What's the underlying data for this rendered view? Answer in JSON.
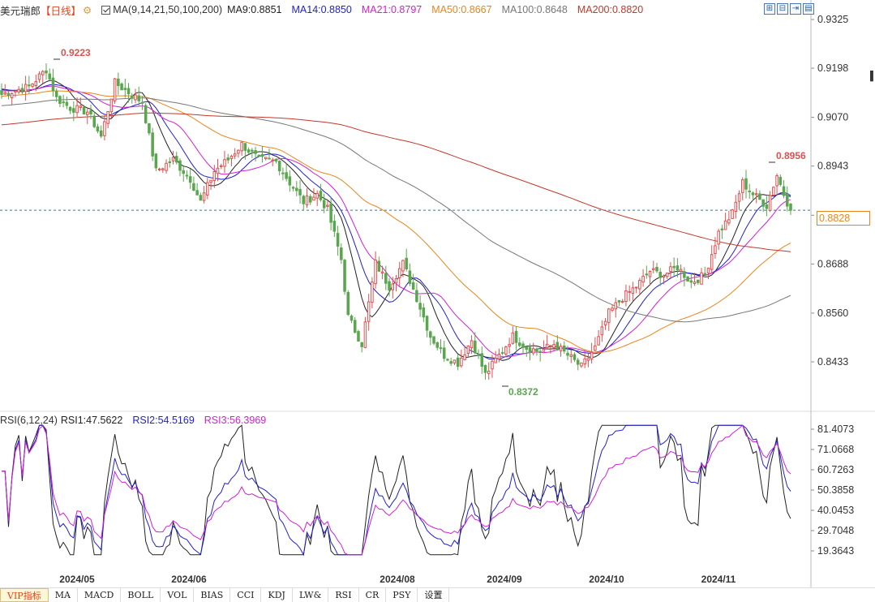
{
  "legend": {
    "symbol": "美元瑞郎",
    "period": "【日线】",
    "ma": "MA(9,14,21,50,100,200)",
    "ma_values": [
      {
        "label": "MA9:0.8851",
        "color": "#222222"
      },
      {
        "label": "MA14:0.8850",
        "color": "#1f1fd0"
      },
      {
        "label": "MA21:0.8797",
        "color": "#d21fd2"
      },
      {
        "label": "MA50:0.8667",
        "color": "#e8851b"
      },
      {
        "label": "MA100:0.8648",
        "color": "#777777"
      },
      {
        "label": "MA200:0.8820",
        "color": "#c0392b"
      }
    ]
  },
  "rsi_legend": {
    "label": "RSI(6,12,24)",
    "values": [
      {
        "label": "RSI1:47.5622",
        "color": "#222222"
      },
      {
        "label": "RSI2:54.5169",
        "color": "#1f1fd0"
      },
      {
        "label": "RSI3:56.3969",
        "color": "#d21fd2"
      }
    ]
  },
  "current_price": "0.8828",
  "annotations": {
    "high": "0.9223",
    "low": "0.8372",
    "recent_high": "0.8956"
  },
  "tabs": [
    "VIP指标",
    "MA",
    "MACD",
    "BOLL",
    "VOL",
    "BIAS",
    "CCI",
    "KDJ",
    "LW&",
    "RSI",
    "CR",
    "PSY",
    "设置"
  ],
  "colors": {
    "up": "#e05050",
    "down": "#5aa64e",
    "current_line": "#3a6fb0"
  },
  "chart_data": {
    "type": "candlestick",
    "price_axis": {
      "ticks": [
        "0.9325",
        "0.9198",
        "0.9070",
        "0.8943",
        "0.8815",
        "0.8688",
        "0.8560",
        "0.8433"
      ],
      "range": [
        0.8305,
        0.9325
      ]
    },
    "rsi_axis": {
      "ticks": [
        "81.4073",
        "71.0668",
        "60.7263",
        "50.3858",
        "40.0453",
        "29.7048",
        "19.3643"
      ],
      "range": [
        14,
        86
      ]
    },
    "x_ticks": [
      "2024/05",
      "2024/06",
      "2024/08",
      "2024/09",
      "2024/10",
      "2024/11"
    ],
    "anchors": [
      [
        0,
        0.913
      ],
      [
        8,
        0.915
      ],
      [
        13,
        0.9195
      ],
      [
        16,
        0.912
      ],
      [
        20,
        0.9095
      ],
      [
        25,
        0.9085
      ],
      [
        29,
        0.902
      ],
      [
        33,
        0.916
      ],
      [
        37,
        0.9135
      ],
      [
        41,
        0.911
      ],
      [
        45,
        0.893
      ],
      [
        50,
        0.896
      ],
      [
        55,
        0.891
      ],
      [
        58,
        0.885
      ],
      [
        62,
        0.893
      ],
      [
        66,
        0.896
      ],
      [
        70,
        0.9
      ],
      [
        75,
        0.896
      ],
      [
        80,
        0.8955
      ],
      [
        84,
        0.89
      ],
      [
        88,
        0.885
      ],
      [
        92,
        0.887
      ],
      [
        95,
        0.883
      ],
      [
        99,
        0.87
      ],
      [
        101,
        0.855
      ],
      [
        105,
        0.848
      ],
      [
        109,
        0.869
      ],
      [
        113,
        0.863
      ],
      [
        117,
        0.869
      ],
      [
        121,
        0.86
      ],
      [
        125,
        0.85
      ],
      [
        129,
        0.845
      ],
      [
        133,
        0.843
      ],
      [
        137,
        0.849
      ],
      [
        141,
        0.84
      ],
      [
        145,
        0.845
      ],
      [
        149,
        0.85
      ],
      [
        153,
        0.847
      ],
      [
        157,
        0.846
      ],
      [
        161,
        0.848
      ],
      [
        165,
        0.845
      ],
      [
        169,
        0.842
      ],
      [
        173,
        0.847
      ],
      [
        177,
        0.856
      ],
      [
        181,
        0.86
      ],
      [
        185,
        0.863
      ],
      [
        189,
        0.867
      ],
      [
        193,
        0.866
      ],
      [
        197,
        0.868
      ],
      [
        201,
        0.864
      ],
      [
        205,
        0.866
      ],
      [
        209,
        0.877
      ],
      [
        213,
        0.882
      ],
      [
        216,
        0.89
      ],
      [
        219,
        0.887
      ],
      [
        223,
        0.884
      ],
      [
        226,
        0.892
      ],
      [
        228,
        0.887
      ],
      [
        230,
        0.8828
      ]
    ],
    "last_candle_index": 230
  }
}
